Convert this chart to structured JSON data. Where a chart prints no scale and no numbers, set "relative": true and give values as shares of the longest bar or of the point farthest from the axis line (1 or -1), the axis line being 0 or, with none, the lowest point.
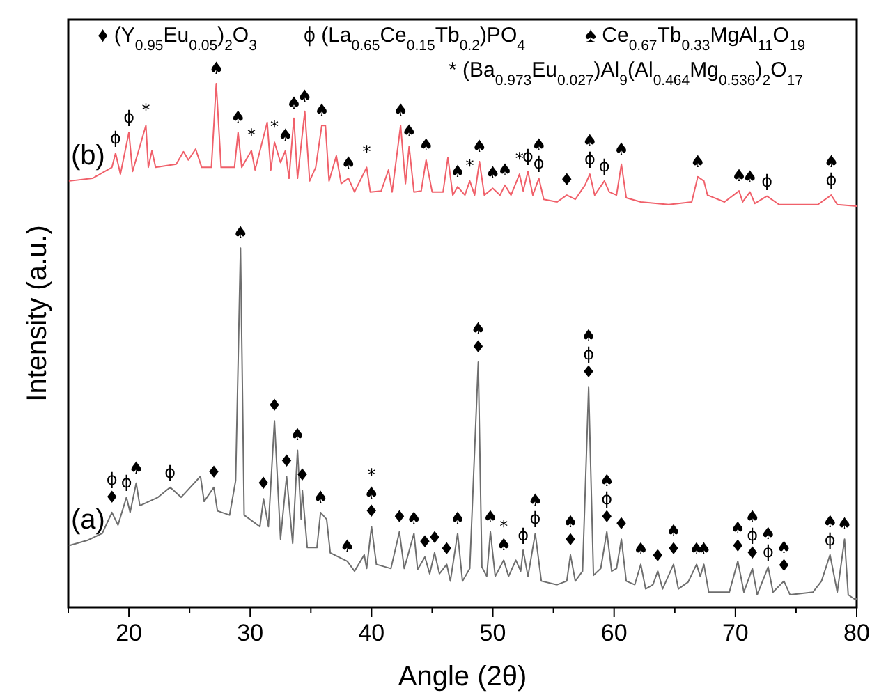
{
  "chart_data": {
    "type": "line",
    "relative": true,
    "xlabel": "Angle (2θ)",
    "ylabel": "Intensity (a.u.)",
    "xlim": [
      15,
      80
    ],
    "xticks": [
      {
        "value": 15,
        "label": null
      },
      20,
      {
        "value": 25,
        "label": null
      },
      30,
      {
        "value": 35,
        "label": null
      },
      40,
      {
        "value": 45,
        "label": null
      },
      50,
      {
        "value": 55,
        "label": null
      },
      60,
      {
        "value": 65,
        "label": null
      },
      70,
      {
        "value": 75,
        "label": null
      },
      80
    ],
    "series": [
      {
        "name": "(a)",
        "color": "#6e6e6e",
        "x": [
          15.1,
          16.6,
          17.8,
          18.6,
          19.1,
          19.8,
          20.1,
          20.6,
          20.9,
          22.4,
          23.4,
          24.3,
          25.9,
          26.2,
          27.0,
          27.3,
          28.3,
          28.8,
          29.2,
          29.5,
          30.8,
          31.1,
          31.5,
          32.0,
          32.5,
          33.0,
          33.5,
          33.9,
          34.2,
          34.3,
          34.7,
          35.5,
          35.8,
          36.3,
          36.6,
          38.0,
          38.6,
          39.4,
          39.6,
          40.0,
          40.4,
          41.6,
          42.3,
          42.7,
          43.5,
          43.8,
          44.4,
          44.8,
          45.2,
          45.6,
          46.2,
          46.5,
          47.1,
          47.5,
          48.1,
          48.8,
          49.1,
          49.5,
          49.8,
          50.2,
          50.9,
          51.3,
          51.9,
          52.3,
          52.5,
          52.9,
          53.5,
          54.0,
          55.3,
          56.1,
          56.4,
          56.8,
          57.4,
          57.9,
          58.3,
          58.9,
          59.4,
          59.8,
          60.2,
          60.6,
          61.0,
          61.7,
          62.2,
          62.6,
          63.2,
          63.6,
          64.0,
          64.9,
          65.3,
          66.1,
          66.8,
          67.1,
          67.4,
          67.8,
          69.5,
          70.2,
          70.7,
          71.4,
          71.8,
          72.7,
          73.1,
          74.0,
          74.5,
          76.4,
          77.1,
          77.8,
          78.4,
          79.0,
          79.3,
          79.8,
          80
        ],
        "values": [
          0.118,
          0.128,
          0.141,
          0.181,
          0.157,
          0.21,
          0.181,
          0.237,
          0.194,
          0.21,
          0.229,
          0.21,
          0.25,
          0.202,
          0.229,
          0.184,
          0.176,
          0.242,
          0.686,
          0.176,
          0.154,
          0.207,
          0.154,
          0.356,
          0.13,
          0.25,
          0.122,
          0.3,
          0.168,
          0.223,
          0.114,
          0.114,
          0.181,
          0.168,
          0.104,
          0.088,
          0.069,
          0.1,
          0.074,
          0.154,
          0.082,
          0.074,
          0.144,
          0.074,
          0.141,
          0.072,
          0.096,
          0.064,
          0.104,
          0.064,
          0.082,
          0.05,
          0.141,
          0.05,
          0.074,
          0.468,
          0.077,
          0.059,
          0.144,
          0.059,
          0.09,
          0.059,
          0.09,
          0.069,
          0.109,
          0.059,
          0.141,
          0.05,
          0.043,
          0.05,
          0.1,
          0.05,
          0.069,
          0.42,
          0.061,
          0.074,
          0.144,
          0.069,
          0.074,
          0.13,
          0.05,
          0.043,
          0.082,
          0.035,
          0.043,
          0.069,
          0.035,
          0.082,
          0.035,
          0.048,
          0.082,
          0.059,
          0.082,
          0.029,
          0.029,
          0.088,
          0.029,
          0.074,
          0.024,
          0.077,
          0.029,
          0.05,
          0.024,
          0.029,
          0.05,
          0.1,
          0.029,
          0.13,
          0.024,
          0.016,
          0.016
        ]
      },
      {
        "name": "(b)",
        "color": "#f0606a",
        "x": [
          15.1,
          17.0,
          18.6,
          18.9,
          19.3,
          20.0,
          20.3,
          21.4,
          21.6,
          21.9,
          22.2,
          23.9,
          24.5,
          24.9,
          25.5,
          26.0,
          26.8,
          27.2,
          27.6,
          28.7,
          29.0,
          29.3,
          30.1,
          30.4,
          31.4,
          31.7,
          32.0,
          32.5,
          32.9,
          33.2,
          33.6,
          33.9,
          34.5,
          34.9,
          35.4,
          35.9,
          36.2,
          36.5,
          37.1,
          37.5,
          38.1,
          38.6,
          39.6,
          39.9,
          40.8,
          41.4,
          41.7,
          42.4,
          42.8,
          43.1,
          43.5,
          44.1,
          44.5,
          45.0,
          45.9,
          46.3,
          46.7,
          47.1,
          47.7,
          48.1,
          48.5,
          48.9,
          49.3,
          50.0,
          50.6,
          51.0,
          51.5,
          52.2,
          52.5,
          52.9,
          53.3,
          53.8,
          54.2,
          55.3,
          56.1,
          56.8,
          57.6,
          58.0,
          58.4,
          59.2,
          59.6,
          60.2,
          60.6,
          61.0,
          62.2,
          64.5,
          66.4,
          66.9,
          67.4,
          67.7,
          69.1,
          70.3,
          70.6,
          71.2,
          71.6,
          72.6,
          73.6,
          76.8,
          77.9,
          78.4,
          80
        ],
        "values": [
          0.814,
          0.819,
          0.84,
          0.867,
          0.827,
          0.907,
          0.832,
          0.92,
          0.84,
          0.872,
          0.84,
          0.846,
          0.87,
          0.854,
          0.875,
          0.84,
          0.84,
          1.0,
          0.84,
          0.84,
          0.907,
          0.84,
          0.872,
          0.835,
          0.926,
          0.835,
          0.888,
          0.849,
          0.872,
          0.819,
          0.934,
          0.819,
          0.947,
          0.814,
          0.84,
          0.92,
          0.92,
          0.814,
          0.862,
          0.809,
          0.819,
          0.793,
          0.84,
          0.793,
          0.795,
          0.835,
          0.793,
          0.92,
          0.809,
          0.88,
          0.793,
          0.795,
          0.854,
          0.793,
          0.793,
          0.859,
          0.787,
          0.803,
          0.787,
          0.814,
          0.787,
          0.851,
          0.787,
          0.8,
          0.787,
          0.806,
          0.787,
          0.827,
          0.795,
          0.832,
          0.787,
          0.819,
          0.779,
          0.774,
          0.787,
          0.779,
          0.806,
          0.827,
          0.787,
          0.814,
          0.793,
          0.787,
          0.846,
          0.782,
          0.774,
          0.769,
          0.774,
          0.822,
          0.814,
          0.787,
          0.774,
          0.795,
          0.774,
          0.793,
          0.771,
          0.785,
          0.769,
          0.769,
          0.787,
          0.769,
          0.766
        ]
      }
    ],
    "annotations": [
      "♦ (Y$_{0.95}$Eu$_{0.05}$)$_{2}$O$_{3}$",
      "ϕ (La$_{0.65}$Ce$_{0.15}$Tb$_{0.2}$)PO$_{4}$",
      "♠ Ce$_{0.67}$Tb$_{0.33}$MgAl$_{11}$O$_{19}$",
      "* (Ba$_{0.973}$Eu$_{0.027}$)Al$_{9}$(Al$_{0.464}$Mg$_{0.536}$)$_{2}$O$_{17}$",
      {
        "text": "ϕ",
        "x": 18.9,
        "y": 0.867
      },
      {
        "text": "ϕ",
        "x": 20.0,
        "y": 0.907
      },
      {
        "text": "*",
        "x": 21.4,
        "y": 0.92
      },
      {
        "text": "♠",
        "x": 27.2,
        "y": 1.0
      },
      {
        "text": "♠",
        "x": 29.0,
        "y": 0.907
      },
      {
        "text": "*",
        "x": 30.1,
        "y": 0.872
      },
      {
        "text": "*",
        "x": 32.0,
        "y": 0.888
      },
      {
        "text": "♠",
        "x": 32.9,
        "y": 0.872
      },
      {
        "text": "♠",
        "x": 33.6,
        "y": 0.934
      },
      {
        "text": "♠",
        "x": 34.5,
        "y": 0.947
      },
      {
        "text": "♠",
        "x": 35.9,
        "y": 0.92
      },
      {
        "text": "♠",
        "x": 38.1,
        "y": 0.819
      },
      {
        "text": "*",
        "x": 39.6,
        "y": 0.84
      },
      {
        "text": "♠",
        "x": 42.4,
        "y": 0.92
      },
      {
        "text": "♠",
        "x": 43.1,
        "y": 0.88
      },
      {
        "text": "♠",
        "x": 44.5,
        "y": 0.854
      },
      {
        "text": "♠",
        "x": 47.1,
        "y": 0.803
      },
      {
        "text": "*",
        "x": 48.1,
        "y": 0.814
      },
      {
        "text": "♠",
        "x": 48.9,
        "y": 0.851
      },
      {
        "text": "♠",
        "x": 50.0,
        "y": 0.8
      },
      {
        "text": "♠",
        "x": 51.0,
        "y": 0.806
      },
      {
        "text": "*",
        "x": 52.2,
        "y": 0.827
      },
      {
        "text": "ϕ",
        "x": 52.9,
        "y": 0.832
      },
      {
        "text": "♠ϕ",
        "x": 53.8,
        "y": 0.819
      },
      {
        "text": "♦",
        "x": 56.1,
        "y": 0.787
      },
      {
        "text": "♠ϕ",
        "x": 58.0,
        "y": 0.827
      },
      {
        "text": "ϕ",
        "x": 59.2,
        "y": 0.814
      },
      {
        "text": "♠",
        "x": 60.6,
        "y": 0.846
      },
      {
        "text": "♠",
        "x": 66.9,
        "y": 0.822
      },
      {
        "text": "♠",
        "x": 70.3,
        "y": 0.795
      },
      {
        "text": "♠",
        "x": 71.2,
        "y": 0.793
      },
      {
        "text": "ϕ",
        "x": 72.6,
        "y": 0.785
      },
      {
        "text": "♠ϕ",
        "x": 77.9,
        "y": 0.787
      },
      {
        "text": "ϕ♦",
        "x": 18.6,
        "y": 0.181
      },
      {
        "text": "ϕ",
        "x": 19.8,
        "y": 0.21
      },
      {
        "text": "♠",
        "x": 20.6,
        "y": 0.237
      },
      {
        "text": "ϕ",
        "x": 23.4,
        "y": 0.229
      },
      {
        "text": "♦",
        "x": 27.0,
        "y": 0.229
      },
      {
        "text": "♠",
        "x": 29.2,
        "y": 0.686
      },
      {
        "text": "♦",
        "x": 31.1,
        "y": 0.207
      },
      {
        "text": "♦",
        "x": 32.0,
        "y": 0.356
      },
      {
        "text": "♦",
        "x": 33.0,
        "y": 0.25
      },
      {
        "text": "♠",
        "x": 33.9,
        "y": 0.3
      },
      {
        "text": "♦",
        "x": 34.3,
        "y": 0.223
      },
      {
        "text": "♠",
        "x": 35.8,
        "y": 0.181
      },
      {
        "text": "♠",
        "x": 38.0,
        "y": 0.088
      },
      {
        "text": "*♠♦",
        "x": 40.0,
        "y": 0.154
      },
      {
        "text": "♦",
        "x": 42.3,
        "y": 0.144
      },
      {
        "text": "♠",
        "x": 43.5,
        "y": 0.141
      },
      {
        "text": "♦",
        "x": 44.4,
        "y": 0.096
      },
      {
        "text": "♦",
        "x": 45.2,
        "y": 0.104
      },
      {
        "text": "♦",
        "x": 46.2,
        "y": 0.082
      },
      {
        "text": "♠",
        "x": 47.1,
        "y": 0.141
      },
      {
        "text": "♠♦",
        "x": 48.8,
        "y": 0.468
      },
      {
        "text": "♠",
        "x": 49.8,
        "y": 0.144
      },
      {
        "text": "*♠",
        "x": 50.9,
        "y": 0.09
      },
      {
        "text": "ϕ",
        "x": 52.5,
        "y": 0.109
      },
      {
        "text": "♠ϕ",
        "x": 53.5,
        "y": 0.141
      },
      {
        "text": "♠♦",
        "x": 56.4,
        "y": 0.1
      },
      {
        "text": "♠ϕ♦",
        "x": 57.9,
        "y": 0.42
      },
      {
        "text": "♠ϕ♦",
        "x": 59.4,
        "y": 0.144
      },
      {
        "text": "♦",
        "x": 60.6,
        "y": 0.13
      },
      {
        "text": "♠",
        "x": 62.2,
        "y": 0.082
      },
      {
        "text": "♦",
        "x": 63.6,
        "y": 0.069
      },
      {
        "text": "♠♦",
        "x": 64.9,
        "y": 0.082
      },
      {
        "text": "♠",
        "x": 66.8,
        "y": 0.082
      },
      {
        "text": "♠",
        "x": 67.4,
        "y": 0.082
      },
      {
        "text": "♠♦",
        "x": 70.2,
        "y": 0.088
      },
      {
        "text": "♠ϕ♦",
        "x": 71.4,
        "y": 0.074
      },
      {
        "text": "♠ϕ",
        "x": 72.7,
        "y": 0.077
      },
      {
        "text": "♠♦",
        "x": 74.0,
        "y": 0.05
      },
      {
        "text": "♠ϕ",
        "x": 77.8,
        "y": 0.1
      },
      {
        "text": "♠",
        "x": 79.0,
        "y": 0.13
      }
    ]
  }
}
